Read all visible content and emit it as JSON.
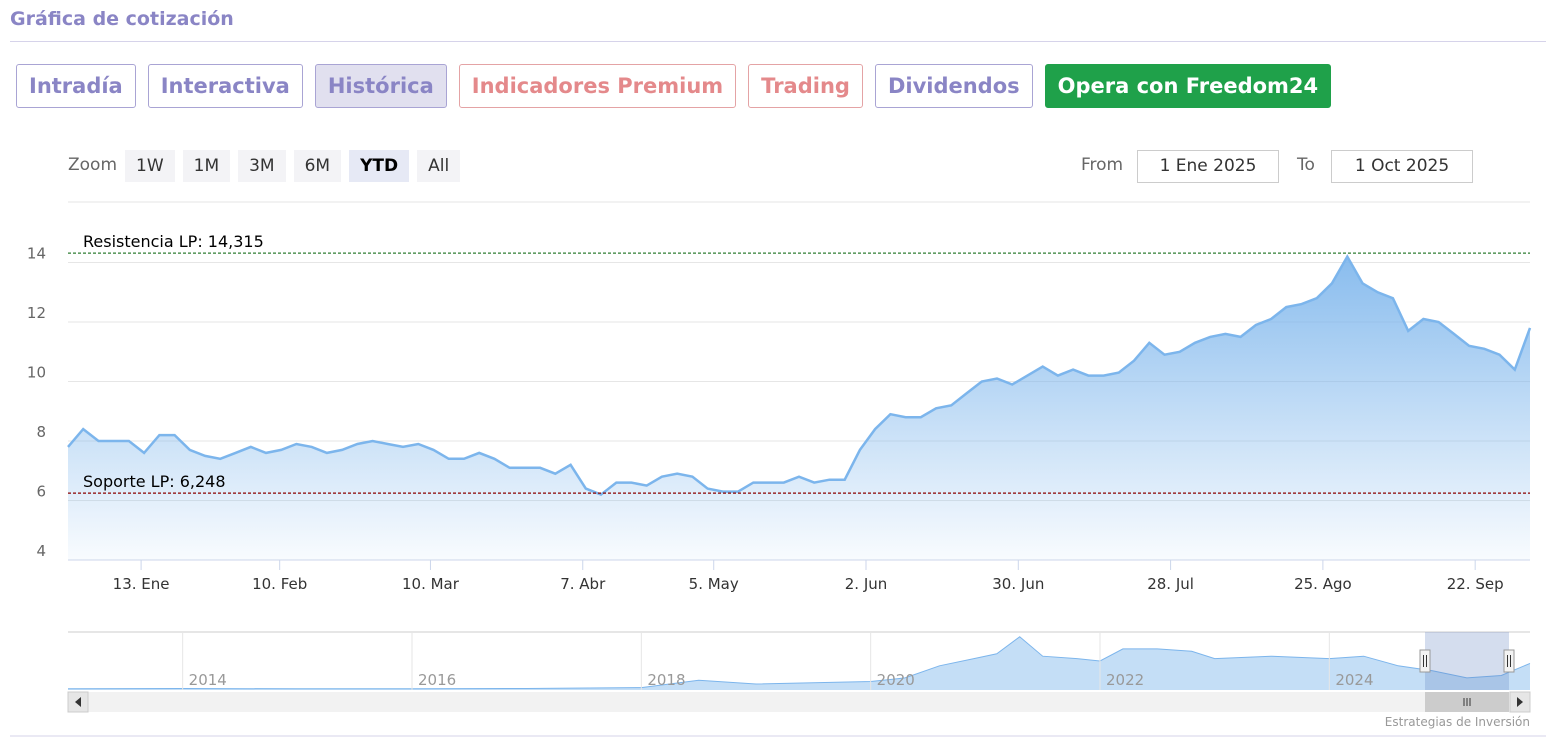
{
  "header": {
    "title": "Gráfica de cotización"
  },
  "tabs": [
    "Intradía",
    "Interactiva",
    "Histórica",
    "Indicadores Premium",
    "Trading",
    "Dividendos",
    "Opera con Freedom24"
  ],
  "zoom": {
    "label": "Zoom",
    "buttons": [
      "1W",
      "1M",
      "3M",
      "6M",
      "YTD",
      "All"
    ],
    "selected": "YTD"
  },
  "range": {
    "from_label": "From",
    "from": "1 Ene 2025",
    "to_label": "To",
    "to": "1 Oct 2025"
  },
  "credit": "Estrategias de Inversión",
  "chart_data": [
    {
      "type": "area",
      "color": "#7cb5ec",
      "grid": true,
      "values": [
        7.8,
        8.4,
        8.0,
        8.0,
        8.0,
        7.6,
        8.2,
        8.2,
        7.7,
        7.5,
        7.4,
        7.6,
        7.8,
        7.6,
        7.7,
        7.9,
        7.8,
        7.6,
        7.7,
        7.9,
        8.0,
        7.9,
        7.8,
        7.9,
        7.7,
        7.4,
        7.4,
        7.6,
        7.4,
        7.1,
        7.1,
        7.1,
        6.9,
        7.2,
        6.4,
        6.2,
        6.6,
        6.6,
        6.5,
        6.8,
        6.9,
        6.8,
        6.4,
        6.3,
        6.3,
        6.6,
        6.6,
        6.6,
        6.8,
        6.6,
        6.7,
        6.7,
        7.7,
        8.4,
        8.9,
        8.8,
        8.8,
        9.1,
        9.2,
        9.6,
        10.0,
        10.1,
        9.9,
        10.2,
        10.5,
        10.2,
        10.4,
        10.2,
        10.2,
        10.3,
        10.7,
        11.3,
        10.9,
        11.0,
        11.3,
        11.5,
        11.6,
        11.5,
        11.9,
        12.1,
        12.5,
        12.6,
        12.8,
        13.3,
        14.2,
        13.3,
        13.0,
        12.8,
        11.7,
        12.1,
        12.0,
        11.6,
        11.2,
        11.1,
        10.9,
        10.4,
        11.8
      ],
      "xlim": [
        0,
        96
      ],
      "xticks": [
        {
          "value": 4.8,
          "label": "13. Ene"
        },
        {
          "value": 13.9,
          "label": "10. Feb"
        },
        {
          "value": 23.8,
          "label": "10. Mar"
        },
        {
          "value": 33.8,
          "label": "7. Abr"
        },
        {
          "value": 42.4,
          "label": "5. May"
        },
        {
          "value": 52.4,
          "label": "2. Jun"
        },
        {
          "value": 62.4,
          "label": "30. Jun"
        },
        {
          "value": 72.4,
          "label": "28. Jul"
        },
        {
          "value": 82.4,
          "label": "25. Ago"
        },
        {
          "value": 92.4,
          "label": "22. Sep"
        }
      ],
      "ylim": [
        4,
        16
      ],
      "yticks": [
        4,
        6,
        8,
        10,
        12,
        14
      ],
      "annotations": [
        {
          "label": "Resistencia LP: 14,315",
          "value": 14.315,
          "color": "#2e7d32"
        },
        {
          "label": "Soporte LP: 6,248",
          "value": 6.248,
          "color": "#8b0000"
        }
      ]
    },
    {
      "type": "area",
      "color": "#7cb5ec",
      "grid": true,
      "x": [
        2013,
        2014,
        2015,
        2016,
        2017,
        2018,
        2018.5,
        2019,
        2019.5,
        2020,
        2020.3,
        2020.6,
        2020.9,
        2021.1,
        2021.3,
        2021.5,
        2021.8,
        2022,
        2022.2,
        2022.5,
        2022.8,
        2023,
        2023.5,
        2024,
        2024.3,
        2024.6,
        2024.9,
        2025.2,
        2025.5,
        2025.75
      ],
      "values": [
        0.5,
        0.6,
        0.5,
        0.5,
        0.6,
        1,
        4,
        2.5,
        3,
        3.5,
        5,
        10,
        13,
        15,
        22,
        14,
        13,
        12,
        17,
        17,
        16,
        13,
        14,
        13,
        14,
        10,
        8,
        5,
        6,
        11
      ],
      "xlim": [
        2013,
        2025.75
      ],
      "xticks": [
        2014,
        2016,
        2018,
        2020,
        2022,
        2024
      ],
      "ylim": [
        0,
        24
      ]
    }
  ]
}
